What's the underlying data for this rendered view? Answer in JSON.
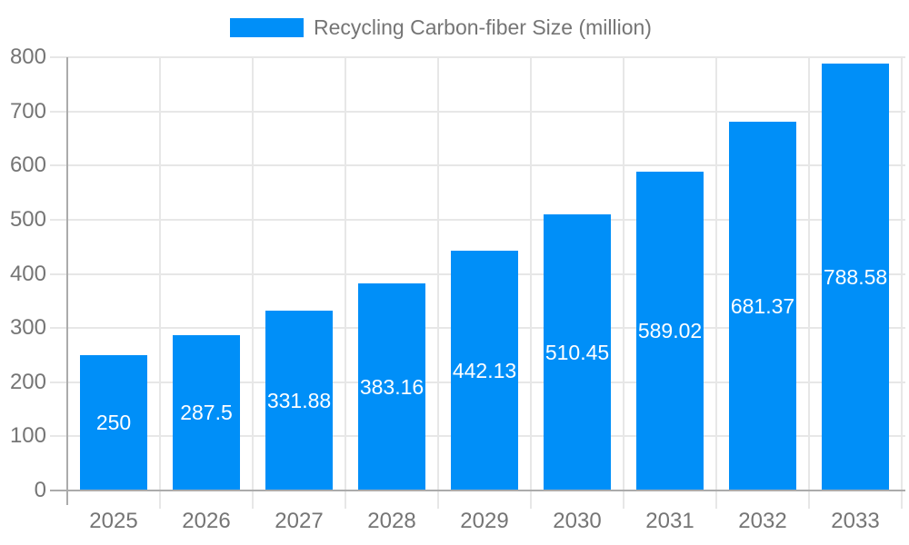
{
  "legend": {
    "label": "Recycling Carbon-fiber Size (million)"
  },
  "colors": {
    "bar": "#008FF8",
    "grid": "#E7E7E7",
    "axis": "#ABABAB",
    "tick_label": "#757575",
    "legend_text": "#757575",
    "value_label": "#FFFFFF",
    "background": "#FFFFFF"
  },
  "chart_data": {
    "type": "bar",
    "title": "",
    "xlabel": "",
    "ylabel": "",
    "categories": [
      "2025",
      "2026",
      "2027",
      "2028",
      "2029",
      "2030",
      "2031",
      "2032",
      "2033"
    ],
    "series": [
      {
        "name": "Recycling Carbon-fiber Size (million)",
        "values": [
          250,
          287.5,
          331.88,
          383.16,
          442.13,
          510.45,
          589.02,
          681.37,
          788.58
        ],
        "value_labels": [
          "250",
          "287.5",
          "331.88",
          "383.16",
          "442.13",
          "510.45",
          "589.02",
          "681.37",
          "788.58"
        ]
      }
    ],
    "ylim": [
      0,
      800
    ],
    "ytick_interval": 100,
    "ytick_labels": [
      "0",
      "100",
      "200",
      "300",
      "400",
      "500",
      "600",
      "700",
      "800"
    ],
    "grid": true,
    "legend_position": "top-center",
    "value_label_position": "inside-center"
  }
}
